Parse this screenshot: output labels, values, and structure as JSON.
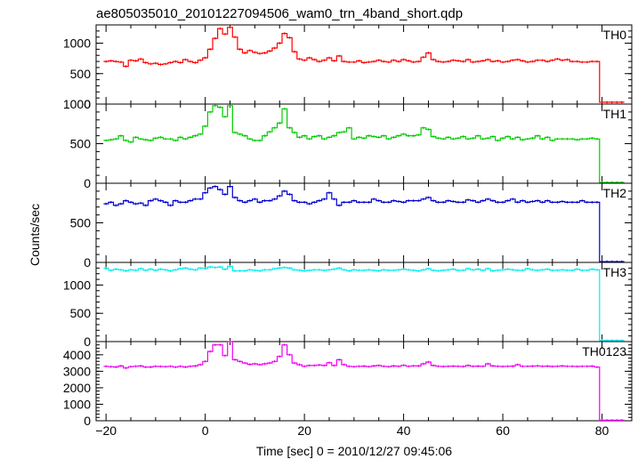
{
  "figure": {
    "title": "ae805035010_20101227094506_wam0_trn_4band_short.qdp",
    "ylabel": "Counts/sec",
    "xlabel": "Time [sec] 0 = 2010/12/27 09:45:06"
  },
  "chart_data": {
    "type": "line",
    "style": "step with error bars",
    "title": "ae805035010_20101227094506_wam0_trn_4band_short.qdp",
    "xlabel": "Time [sec] 0 = 2010/12/27 09:45:06",
    "ylabel": "Counts/sec",
    "xlim": [
      -22,
      86
    ],
    "x_ticks": [
      -20,
      0,
      20,
      40,
      60,
      80
    ],
    "x_tick_labels": [
      "−20",
      "0",
      "20",
      "40",
      "60",
      "80"
    ],
    "bin_width": 1,
    "x": [
      -20,
      -19,
      -18,
      -17,
      -16,
      -15,
      -14,
      -13,
      -12,
      -11,
      -10,
      -9,
      -8,
      -7,
      -6,
      -5,
      -4,
      -3,
      -2,
      -1,
      0,
      1,
      2,
      3,
      4,
      5,
      6,
      7,
      8,
      9,
      10,
      11,
      12,
      13,
      14,
      15,
      16,
      17,
      18,
      19,
      20,
      21,
      22,
      23,
      24,
      25,
      26,
      27,
      28,
      29,
      30,
      31,
      32,
      33,
      34,
      35,
      36,
      37,
      38,
      39,
      40,
      41,
      42,
      43,
      44,
      45,
      46,
      47,
      48,
      49,
      50,
      51,
      52,
      53,
      54,
      55,
      56,
      57,
      58,
      59,
      60,
      61,
      62,
      63,
      64,
      65,
      66,
      67,
      68,
      69,
      70,
      71,
      72,
      73,
      74,
      75,
      76,
      77,
      78,
      79,
      80,
      81,
      82,
      83,
      84
    ],
    "grid": false,
    "legend": "none",
    "panels": [
      {
        "name": "TH0",
        "color": "#ff0000",
        "ylim": [
          0,
          1300
        ],
        "yticks": [
          0,
          500,
          1000
        ],
        "ytick_labels": [
          "0",
          "500",
          "1000"
        ],
        "values": [
          700,
          710,
          700,
          690,
          620,
          720,
          710,
          740,
          680,
          660,
          670,
          650,
          660,
          680,
          700,
          680,
          730,
          700,
          680,
          720,
          760,
          900,
          1080,
          1240,
          1150,
          1260,
          1100,
          900,
          840,
          880,
          850,
          830,
          840,
          870,
          920,
          1000,
          1160,
          1090,
          860,
          740,
          720,
          760,
          730,
          700,
          720,
          760,
          710,
          790,
          700,
          690,
          690,
          710,
          680,
          690,
          700,
          720,
          700,
          690,
          720,
          700,
          730,
          710,
          690,
          700,
          770,
          840,
          730,
          700,
          690,
          700,
          720,
          710,
          700,
          730,
          690,
          700,
          710,
          730,
          700,
          710,
          690,
          700,
          720,
          730,
          710,
          690,
          700,
          720,
          720,
          700,
          720,
          740,
          720,
          730,
          700,
          700,
          690,
          690,
          700,
          700,
          30,
          30,
          30,
          30,
          30
        ],
        "ymin": 0,
        "ymax": 1300
      },
      {
        "name": "TH1",
        "color": "#00cc00",
        "ylim": [
          0,
          1000
        ],
        "yticks": [
          0,
          500,
          1000
        ],
        "ytick_labels": [
          "0",
          "500",
          "1000"
        ],
        "values": [
          540,
          550,
          560,
          600,
          540,
          520,
          580,
          560,
          550,
          540,
          570,
          580,
          560,
          560,
          540,
          580,
          560,
          580,
          600,
          620,
          720,
          900,
          980,
          960,
          840,
          980,
          640,
          620,
          600,
          560,
          540,
          540,
          600,
          650,
          700,
          760,
          940,
          700,
          640,
          580,
          600,
          560,
          590,
          600,
          560,
          580,
          600,
          640,
          650,
          700,
          560,
          580,
          570,
          600,
          590,
          580,
          600,
          560,
          580,
          600,
          620,
          600,
          600,
          610,
          700,
          680,
          590,
          570,
          560,
          580,
          560,
          570,
          590,
          560,
          570,
          600,
          560,
          570,
          590,
          540,
          570,
          590,
          560,
          580,
          550,
          560,
          570,
          600,
          560,
          580,
          540,
          560,
          560,
          560,
          560,
          550,
          560,
          560,
          570,
          560,
          10,
          10,
          10,
          10,
          10
        ],
        "ymin": 0,
        "ymax": 1000
      },
      {
        "name": "TH2",
        "color": "#0000cc",
        "ylim": [
          0,
          1000
        ],
        "yticks": [
          0,
          500
        ],
        "ytick_labels": [
          "0",
          "500"
        ],
        "values": [
          740,
          760,
          720,
          740,
          780,
          760,
          740,
          750,
          720,
          780,
          800,
          780,
          760,
          720,
          780,
          760,
          760,
          780,
          800,
          800,
          880,
          940,
          960,
          920,
          860,
          960,
          820,
          780,
          760,
          780,
          800,
          760,
          780,
          780,
          800,
          840,
          900,
          860,
          780,
          760,
          760,
          740,
          760,
          780,
          800,
          880,
          800,
          720,
          760,
          760,
          780,
          760,
          760,
          760,
          800,
          780,
          760,
          760,
          780,
          770,
          760,
          780,
          780,
          780,
          800,
          820,
          780,
          760,
          760,
          780,
          770,
          760,
          760,
          790,
          780,
          760,
          780,
          800,
          780,
          760,
          760,
          780,
          800,
          760,
          780,
          760,
          770,
          780,
          760,
          780,
          760,
          760,
          770,
          760,
          760,
          760,
          780,
          760,
          760,
          760,
          10,
          10,
          10,
          10,
          10
        ],
        "ymin": 0,
        "ymax": 1000
      },
      {
        "name": "TH3",
        "color": "#00eeee",
        "ylim": [
          0,
          1400
        ],
        "yticks": [
          0,
          500,
          1000
        ],
        "ytick_labels": [
          "0",
          "500",
          "1000"
        ],
        "values": [
          1300,
          1260,
          1280,
          1270,
          1250,
          1270,
          1260,
          1290,
          1260,
          1280,
          1260,
          1280,
          1270,
          1250,
          1270,
          1290,
          1300,
          1280,
          1270,
          1300,
          1300,
          1320,
          1310,
          1320,
          1280,
          1330,
          1250,
          1250,
          1250,
          1270,
          1260,
          1250,
          1270,
          1270,
          1290,
          1300,
          1310,
          1300,
          1270,
          1260,
          1250,
          1260,
          1270,
          1270,
          1260,
          1270,
          1280,
          1300,
          1270,
          1250,
          1270,
          1260,
          1260,
          1270,
          1260,
          1250,
          1270,
          1260,
          1260,
          1270,
          1280,
          1270,
          1260,
          1250,
          1270,
          1290,
          1260,
          1250,
          1260,
          1270,
          1280,
          1260,
          1260,
          1290,
          1270,
          1280,
          1260,
          1290,
          1250,
          1260,
          1270,
          1280,
          1270,
          1260,
          1260,
          1290,
          1270,
          1260,
          1270,
          1280,
          1260,
          1260,
          1270,
          1260,
          1260,
          1280,
          1260,
          1260,
          1280,
          1270,
          20,
          20,
          20,
          20,
          20
        ],
        "ymin": 0,
        "ymax": 1400
      },
      {
        "name": "TH0123",
        "color": "#ee00ee",
        "ylim": [
          0,
          4800
        ],
        "yticks": [
          0,
          1000,
          2000,
          3000,
          4000
        ],
        "ytick_labels": [
          "0",
          "1000",
          "2000",
          "3000",
          "4000"
        ],
        "values": [
          3300,
          3280,
          3260,
          3320,
          3200,
          3280,
          3300,
          3320,
          3250,
          3260,
          3300,
          3290,
          3280,
          3300,
          3250,
          3300,
          3260,
          3300,
          3320,
          3400,
          3600,
          4200,
          4600,
          4600,
          3950,
          4800,
          3700,
          3600,
          3500,
          3420,
          3450,
          3400,
          3450,
          3500,
          3600,
          3900,
          4600,
          4000,
          3500,
          3400,
          3300,
          3350,
          3350,
          3380,
          3350,
          3520,
          3350,
          3700,
          3400,
          3300,
          3280,
          3300,
          3310,
          3280,
          3320,
          3350,
          3300,
          3280,
          3320,
          3300,
          3360,
          3300,
          3330,
          3320,
          3450,
          3560,
          3350,
          3300,
          3290,
          3300,
          3310,
          3300,
          3290,
          3350,
          3300,
          3310,
          3300,
          3450,
          3320,
          3300,
          3290,
          3300,
          3310,
          3400,
          3300,
          3300,
          3310,
          3330,
          3300,
          3310,
          3290,
          3300,
          3320,
          3300,
          3300,
          3290,
          3300,
          3300,
          3310,
          3250,
          30,
          30,
          30,
          30,
          30
        ],
        "ymin": 0,
        "ymax": 4800
      }
    ]
  }
}
